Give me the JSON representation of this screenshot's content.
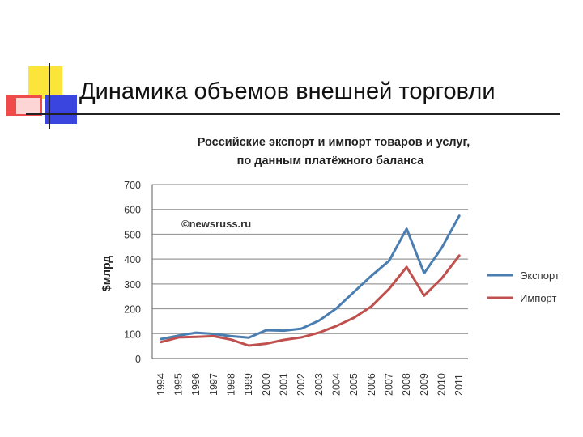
{
  "slide": {
    "title": "Динамика объемов внешней торговли",
    "accent_colors": {
      "yellow": "#fce53a",
      "red": "#f04b4b",
      "blue": "#3a45e0"
    }
  },
  "chart_data": {
    "type": "line",
    "title": "Российские экспорт и импорт товаров и услуг,",
    "subtitle": "по данным платёжного баланса",
    "ylabel": "$млрд",
    "xlabel": "",
    "watermark": "©newsruss.ru",
    "ylim": [
      0,
      700
    ],
    "yticks": [
      0,
      100,
      200,
      300,
      400,
      500,
      600,
      700
    ],
    "grid": true,
    "legend_position": "right",
    "categories": [
      "1994",
      "1995",
      "1996",
      "1997",
      "1998",
      "1999",
      "2000",
      "2001",
      "2002",
      "2003",
      "2004",
      "2005",
      "2006",
      "2007",
      "2008",
      "2009",
      "2010",
      "2011"
    ],
    "series": [
      {
        "name": "Экспорт",
        "color": "#4a7eb0",
        "values": [
          78,
          92,
          104,
          99,
          90,
          84,
          114,
          112,
          120,
          152,
          202,
          268,
          333,
          393,
          522,
          343,
          445,
          574
        ]
      },
      {
        "name": "Импорт",
        "color": "#c0504d",
        "values": [
          66,
          85,
          87,
          90,
          76,
          52,
          60,
          75,
          85,
          104,
          131,
          164,
          210,
          280,
          368,
          253,
          322,
          414
        ]
      }
    ]
  }
}
